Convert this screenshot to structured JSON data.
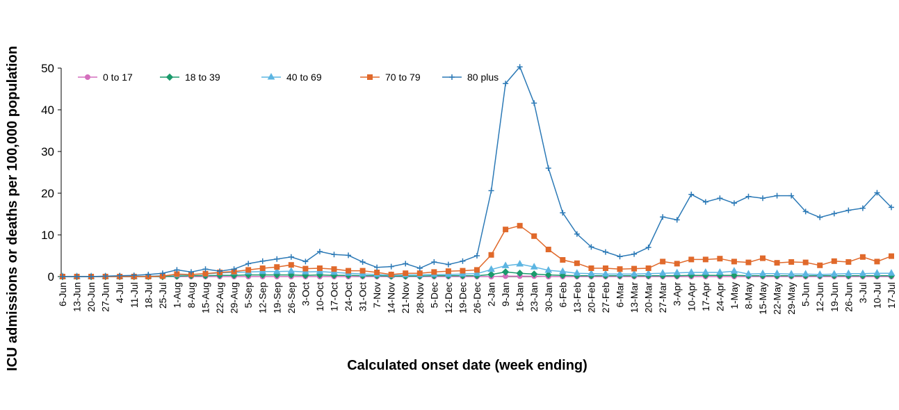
{
  "chart_data": {
    "type": "line",
    "y_label": "ICU admissions or deaths per 100,000 population",
    "x_label": "Calculated onset date (week ending)",
    "categories": [
      "6-Jun",
      "13-Jun",
      "20-Jun",
      "27-Jun",
      "4-Jul",
      "11-Jul",
      "18-Jul",
      "25-Jul",
      "1-Aug",
      "8-Aug",
      "15-Aug",
      "22-Aug",
      "29-Aug",
      "5-Sep",
      "12-Sep",
      "19-Sep",
      "26-Sep",
      "3-Oct",
      "10-Oct",
      "17-Oct",
      "24-Oct",
      "31-Oct",
      "7-Nov",
      "14-Nov",
      "21-Nov",
      "28-Nov",
      "5-Dec",
      "12-Dec",
      "19-Dec",
      "26-Dec",
      "2-Jan",
      "9-Jan",
      "16-Jan",
      "23-Jan",
      "30-Jan",
      "6-Feb",
      "13-Feb",
      "20-Feb",
      "27-Feb",
      "6-Mar",
      "13-Mar",
      "20-Mar",
      "27-Mar",
      "3-Apr",
      "10-Apr",
      "17-Apr",
      "24-Apr",
      "1-May",
      "8-May",
      "15-May",
      "22-May",
      "29-May",
      "5-Jun",
      "12-Jun",
      "19-Jun",
      "26-Jun",
      "3-Jul",
      "10-Jul",
      "17-Jul"
    ],
    "ylim": [
      0,
      50
    ],
    "yticks": [
      0,
      10,
      20,
      30,
      40,
      50
    ],
    "legend": "top-left",
    "series": [
      {
        "name": "0 to 17",
        "color": "#d46fbd",
        "marker": "circle",
        "values": [
          0,
          0,
          0,
          0,
          0,
          0,
          0,
          0,
          0,
          0,
          0,
          0,
          0,
          0,
          0,
          0,
          0,
          0,
          0,
          0,
          0,
          0,
          0,
          0,
          0,
          0,
          0,
          0,
          0,
          0,
          0,
          0.1,
          0.1,
          0.1,
          0,
          0,
          0,
          0,
          0,
          0,
          0,
          0,
          0,
          0,
          0,
          0,
          0,
          0,
          0,
          0,
          0,
          0,
          0,
          0,
          0,
          0,
          0,
          0,
          0
        ]
      },
      {
        "name": "18 to 39",
        "color": "#1b9a6c",
        "marker": "diamond",
        "values": [
          0,
          0,
          0,
          0,
          0,
          0,
          0,
          0,
          0.1,
          0.2,
          0.2,
          0.3,
          0.3,
          0.4,
          0.4,
          0.4,
          0.4,
          0.3,
          0.4,
          0.3,
          0.3,
          0.2,
          0.2,
          0.1,
          0.1,
          0.1,
          0.2,
          0.2,
          0.2,
          0.2,
          0.5,
          1.1,
          0.8,
          0.6,
          0.4,
          0.3,
          0.2,
          0.2,
          0.2,
          0.2,
          0.2,
          0.2,
          0.2,
          0.2,
          0.3,
          0.3,
          0.3,
          0.3,
          0.2,
          0.2,
          0.2,
          0.2,
          0.2,
          0.2,
          0.2,
          0.2,
          0.2,
          0.2,
          0.2
        ]
      },
      {
        "name": "40 to 69",
        "color": "#5cb5e2",
        "marker": "triangle",
        "values": [
          0,
          0,
          0,
          0,
          0,
          0,
          0.1,
          0.2,
          0.4,
          0.5,
          0.6,
          0.9,
          1.0,
          1.1,
          1.2,
          1.2,
          1.3,
          1.1,
          1.2,
          1.0,
          0.8,
          0.6,
          0.5,
          0.3,
          0.4,
          0.4,
          0.5,
          0.5,
          0.6,
          0.7,
          1.7,
          2.6,
          3.0,
          2.3,
          1.5,
          1.2,
          0.8,
          0.7,
          0.6,
          0.6,
          0.6,
          0.7,
          0.8,
          0.9,
          1.0,
          1.0,
          1.0,
          1.3,
          0.6,
          0.7,
          0.7,
          0.6,
          0.6,
          0.5,
          0.6,
          0.7,
          0.7,
          0.8,
          0.8
        ]
      },
      {
        "name": "70 to 79",
        "color": "#e0692b",
        "marker": "square",
        "values": [
          0,
          0,
          0,
          0,
          0,
          0,
          0,
          0.1,
          0.6,
          0.5,
          0.7,
          1.0,
          1.2,
          1.6,
          2.0,
          2.3,
          2.8,
          1.9,
          2.0,
          1.8,
          1.4,
          1.4,
          1.0,
          0.5,
          0.8,
          0.8,
          1.1,
          1.3,
          1.4,
          1.6,
          5.2,
          11.3,
          12.2,
          9.7,
          6.5,
          4.0,
          3.2,
          2.0,
          2.0,
          1.8,
          1.9,
          2.0,
          3.6,
          3.1,
          4.1,
          4.1,
          4.3,
          3.6,
          3.4,
          4.4,
          3.3,
          3.5,
          3.4,
          2.7,
          3.7,
          3.5,
          4.7,
          3.6,
          4.9
        ]
      },
      {
        "name": "80 plus",
        "color": "#2b79b6",
        "marker": "plus",
        "values": [
          0,
          0,
          0,
          0.1,
          0.2,
          0.3,
          0.5,
          0.8,
          1.6,
          1.1,
          1.8,
          1.3,
          1.8,
          3.1,
          3.7,
          4.2,
          4.7,
          3.6,
          6.0,
          5.3,
          5.1,
          3.5,
          2.2,
          2.4,
          3.1,
          2.0,
          3.5,
          2.9,
          3.7,
          5.0,
          20.6,
          46.3,
          50.3,
          41.6,
          26.0,
          15.3,
          10.2,
          7.1,
          5.9,
          4.8,
          5.4,
          7.0,
          14.3,
          13.6,
          19.7,
          17.9,
          18.8,
          17.6,
          19.2,
          18.8,
          19.4,
          19.4,
          15.6,
          14.2,
          15.1,
          15.9,
          16.4,
          20.1,
          16.6
        ]
      }
    ]
  }
}
